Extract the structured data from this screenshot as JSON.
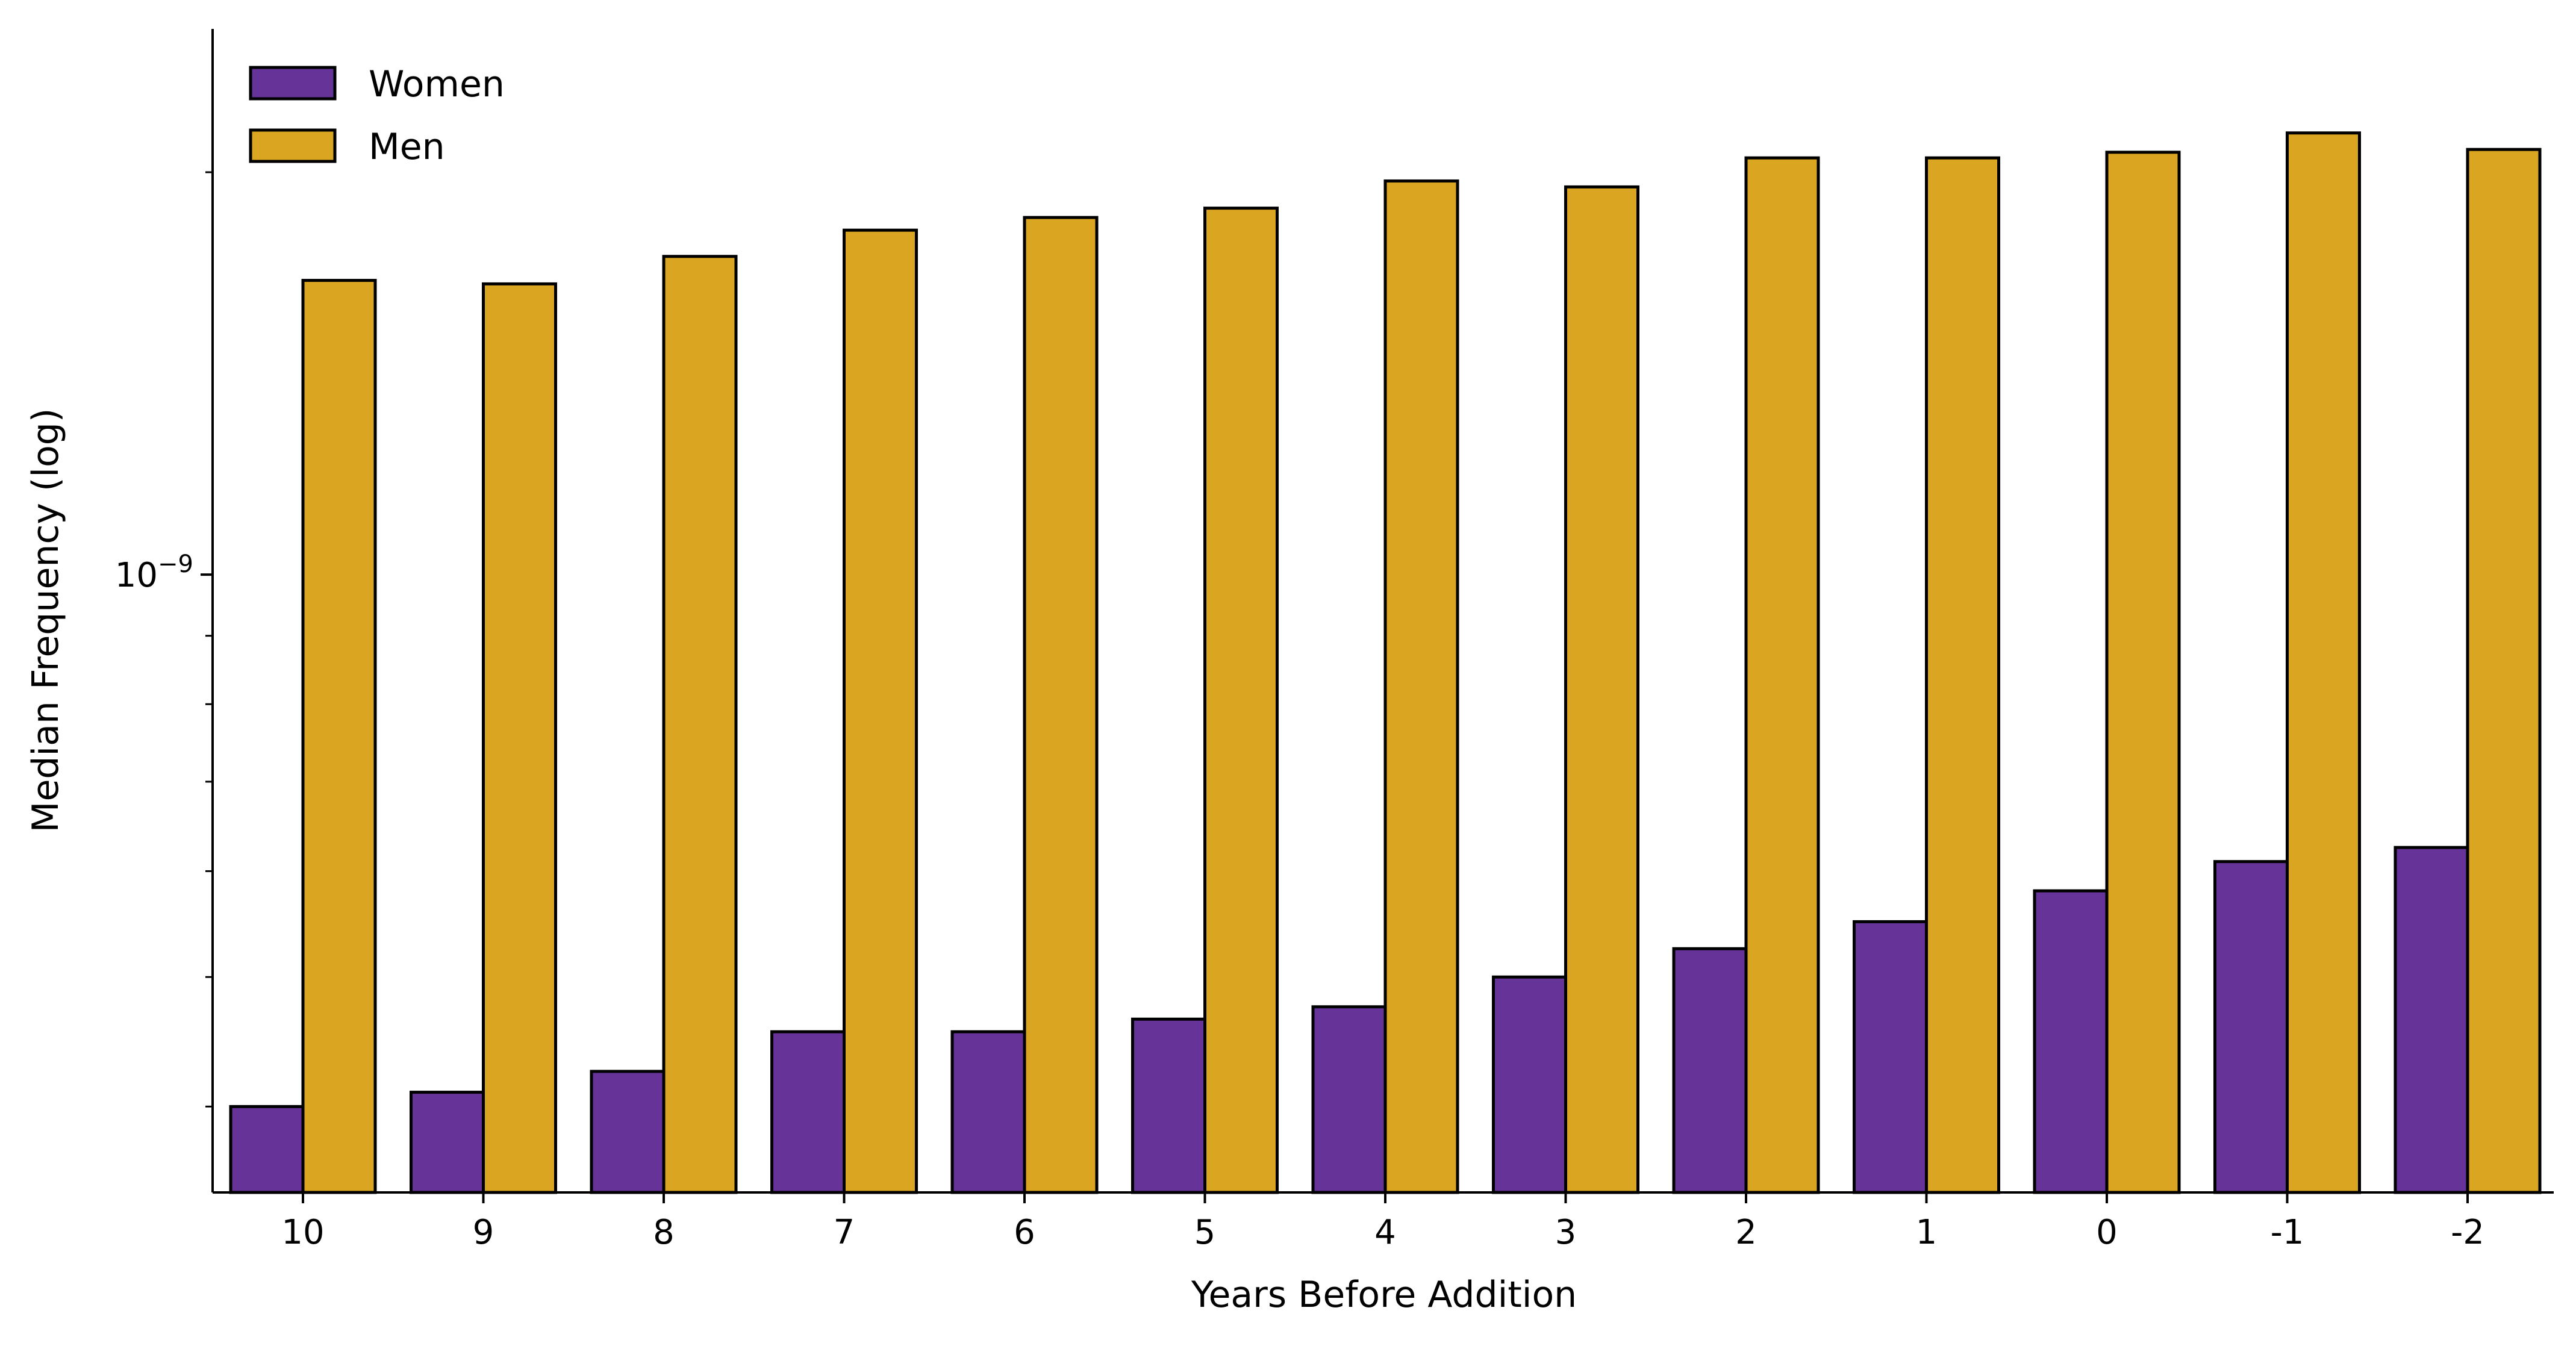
{
  "chart_data": {
    "type": "bar",
    "scale": "log",
    "xlabel": "Years Before Addition",
    "ylabel": "Median Frequency (log)",
    "categories": [
      "10",
      "9",
      "8",
      "7",
      "6",
      "5",
      "4",
      "3",
      "2",
      "1",
      "0",
      "-1",
      "-2"
    ],
    "series": [
      {
        "name": "Women",
        "color": "#663399",
        "values": [
          4e-10,
          4.1e-10,
          4.25e-10,
          4.55e-10,
          4.55e-10,
          4.65e-10,
          4.75e-10,
          5e-10,
          5.25e-10,
          5.5e-10,
          5.8e-10,
          6.1e-10,
          6.25e-10
        ]
      },
      {
        "name": "Men",
        "color": "#DAA520",
        "values": [
          1.66e-09,
          1.65e-09,
          1.73e-09,
          1.81e-09,
          1.85e-09,
          1.88e-09,
          1.97e-09,
          1.95e-09,
          2.05e-09,
          2.05e-09,
          2.07e-09,
          2.14e-09,
          2.08e-09
        ]
      }
    ],
    "ylim": [
      3.45e-10,
      2.56e-09
    ],
    "yticks": [
      {
        "value": 1e-09,
        "base": "10",
        "exponent": "−9"
      }
    ],
    "legend": "upper-left",
    "grid": false
  }
}
